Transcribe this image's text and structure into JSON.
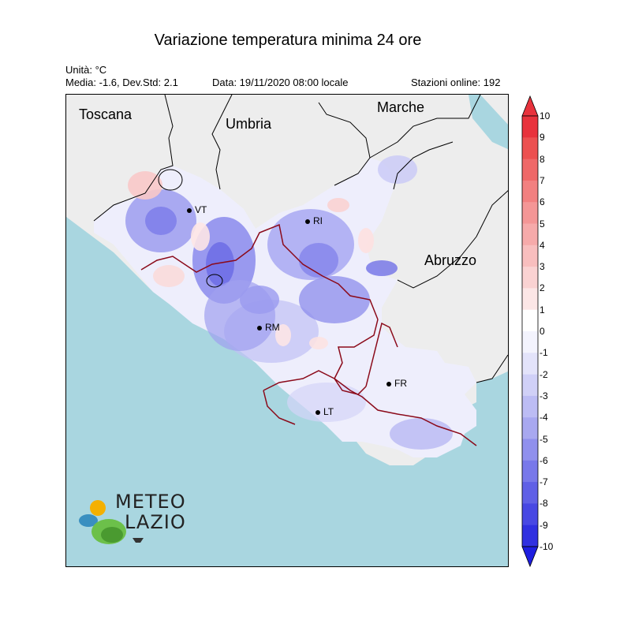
{
  "title": "Variazione temperatura minima 24 ore",
  "unit_line": "Unità: °C",
  "stats_line": "Media: -1.6, Dev.Std: 2.1",
  "date_line": "Data: 19/11/2020 08:00 locale",
  "stations_line": "Stazioni online: 192",
  "regions": {
    "toscana": "Toscana",
    "umbria": "Umbria",
    "marche": "Marche",
    "abruzzo": "Abruzzo"
  },
  "cities": {
    "vt": "VT",
    "ri": "RI",
    "rm": "RM",
    "fr": "FR",
    "lt": "LT"
  },
  "colorbar": {
    "labels": [
      "10",
      "9",
      "8",
      "7",
      "6",
      "5",
      "4",
      "3",
      "2",
      "1",
      "0",
      "-1",
      "-2",
      "-3",
      "-4",
      "-5",
      "-6",
      "-7",
      "-8",
      "-9",
      "-10"
    ],
    "colors": [
      "#e8323c",
      "#ec5050",
      "#ef6868",
      "#f28080",
      "#f49696",
      "#f6aaaa",
      "#f8bebe",
      "#fad2d2",
      "#fce6e6",
      "#ffffff",
      "#f3f3fd",
      "#e3e3fa",
      "#d0d0f7",
      "#bcbcf4",
      "#a8a8f0",
      "#9090ed",
      "#7878ea",
      "#6060e6",
      "#4848e3",
      "#3030e0"
    ]
  },
  "colors": {
    "sea": "#a9d6e0",
    "land_outside": "#ededed",
    "lazio_base": "#eeeefc",
    "border_lazio": "#8b0a1a",
    "border_other": "#000000"
  },
  "logo": {
    "line1": "METEO",
    "line2": "LAZIO"
  }
}
